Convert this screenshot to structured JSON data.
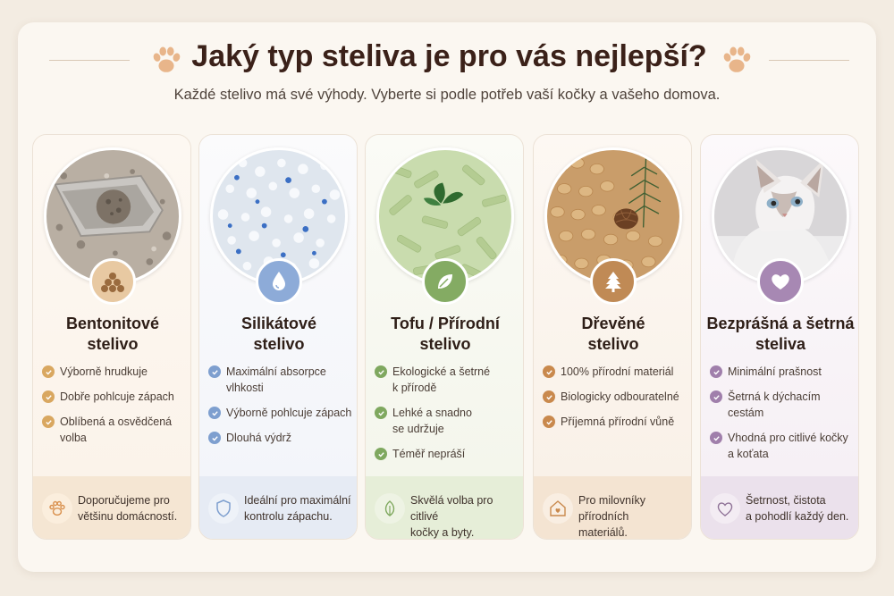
{
  "header": {
    "title": "Jaký typ steliva je pro vás nejlepší?",
    "subtitle": "Každé stelivo má své výhody. Vyberte si podle potřeb vaší kočky a vašeho domova."
  },
  "cards": [
    {
      "title_l1": "Bentonitové",
      "title_l2": "stelivo",
      "accent": "#c9a67a",
      "features": [
        {
          "l1": "Výborně hrudkuje",
          "l2": ""
        },
        {
          "l1": "Dobře pohlcuje zápach",
          "l2": ""
        },
        {
          "l1": "Oblíbená a osvědčená",
          "l2": "volba"
        }
      ],
      "foot_l1": "Doporučujeme pro",
      "foot_l2": "většinu domácností."
    },
    {
      "title_l1": "Silikátové",
      "title_l2": "stelivo",
      "accent": "#7e9fcf",
      "features": [
        {
          "l1": "Maximální absorpce",
          "l2": "vlhkosti"
        },
        {
          "l1": "Výborně pohlcuje zápach",
          "l2": ""
        },
        {
          "l1": "Dlouhá výdrž",
          "l2": ""
        }
      ],
      "foot_l1": "Ideální pro maximální",
      "foot_l2": "kontrolu zápachu."
    },
    {
      "title_l1": "Tofu / Přírodní",
      "title_l2": "stelivo",
      "accent": "#7fa85f",
      "features": [
        {
          "l1": "Ekologické a šetrné",
          "l2": "k přírodě"
        },
        {
          "l1": "Lehké a snadno",
          "l2": "se udržuje"
        },
        {
          "l1": "Téměř nepráší",
          "l2": ""
        }
      ],
      "foot_l1": "Skvělá volba pro citlivé",
      "foot_l2": "kočky a byty."
    },
    {
      "title_l1": "Dřevěné",
      "title_l2": "stelivo",
      "accent": "#c08a55",
      "features": [
        {
          "l1": "100% přírodní materiál",
          "l2": ""
        },
        {
          "l1": "Biologicky odbouratelné",
          "l2": ""
        },
        {
          "l1": "Příjemná přírodní vůně",
          "l2": ""
        }
      ],
      "foot_l1": "Pro milovníky přírodních",
      "foot_l2": "materiálů."
    },
    {
      "title_l1": "Bezprášná a šetrná",
      "title_l2": "steliva",
      "accent": "#a788b3",
      "features": [
        {
          "l1": "Minimální prašnost",
          "l2": ""
        },
        {
          "l1": "Šetrná k dýchacím",
          "l2": "cestám"
        },
        {
          "l1": "Vhodná pro citlivé kočky",
          "l2": "a koťata"
        }
      ],
      "foot_l1": "Šetrnost, čistota",
      "foot_l2": "a pohodlí každý den."
    }
  ]
}
